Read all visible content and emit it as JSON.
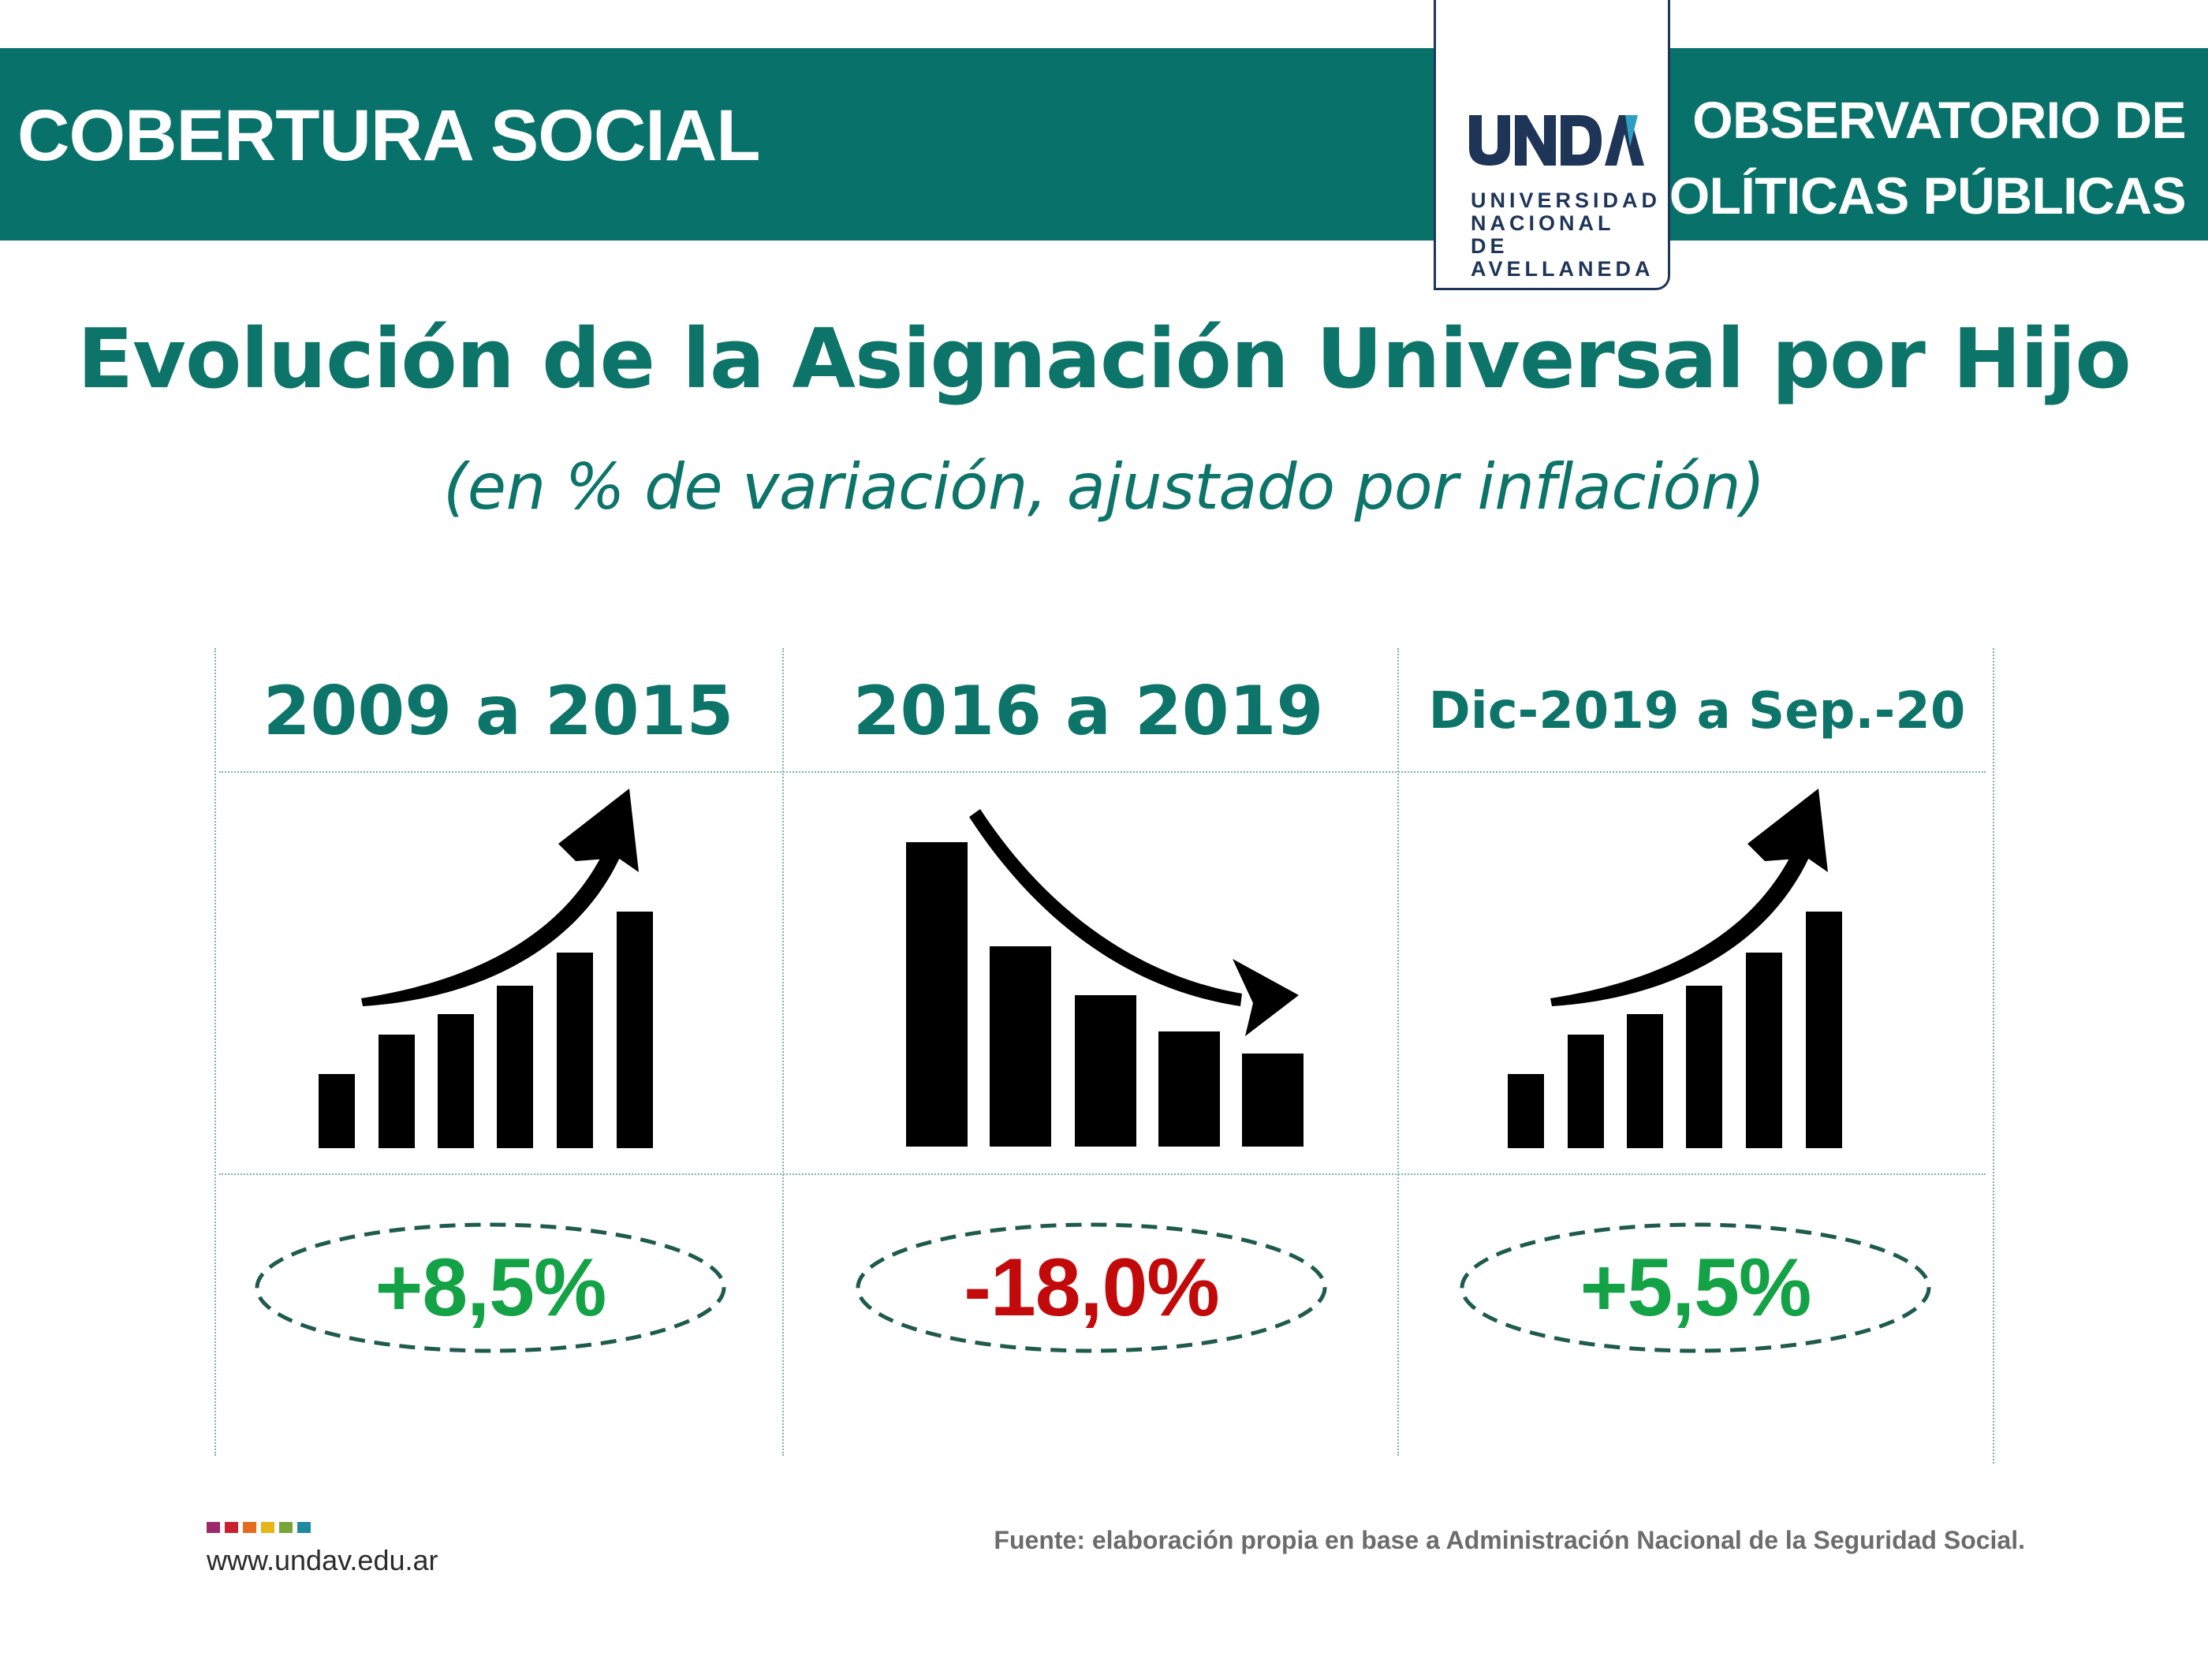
{
  "header": {
    "section": "COBERTURA SOCIAL",
    "observatory_line1": "OBSERVATORIO DE",
    "observatory_line2": "POLÍTICAS PÚBLICAS",
    "logo": {
      "wordmark": "UNDAV",
      "line1": "UNIVERSIDAD",
      "line2": "NACIONAL DE",
      "line3": "AVELLANEDA"
    }
  },
  "title": "Evolución de la Asignación Universal por Hijo",
  "subtitle": "(en % de variación, ajustado por inflación)",
  "periods": [
    {
      "label": "2009 a 2015",
      "value": "+8,5%",
      "trend": "up",
      "icon": "growth-chart-icon"
    },
    {
      "label": "2016 a 2019",
      "value": "-18,0%",
      "trend": "down",
      "icon": "decline-chart-icon"
    },
    {
      "label": "Dic-2019 a Sep.-20",
      "value": "+5,5%",
      "trend": "up",
      "icon": "growth-chart-icon"
    }
  ],
  "footer": {
    "website": "www.undav.edu.ar",
    "source": "Fuente: elaboración propia en base a Administración Nacional de la Seguridad Social.",
    "brand_colors": [
      "#9c2a6b",
      "#c8202f",
      "#e46a1e",
      "#e8b417",
      "#7aa33a",
      "#1f8aa0"
    ]
  },
  "colors": {
    "teal": "#08726a",
    "navy": "#1f3558",
    "positive": "#14a246",
    "negative": "#c20a0a"
  }
}
